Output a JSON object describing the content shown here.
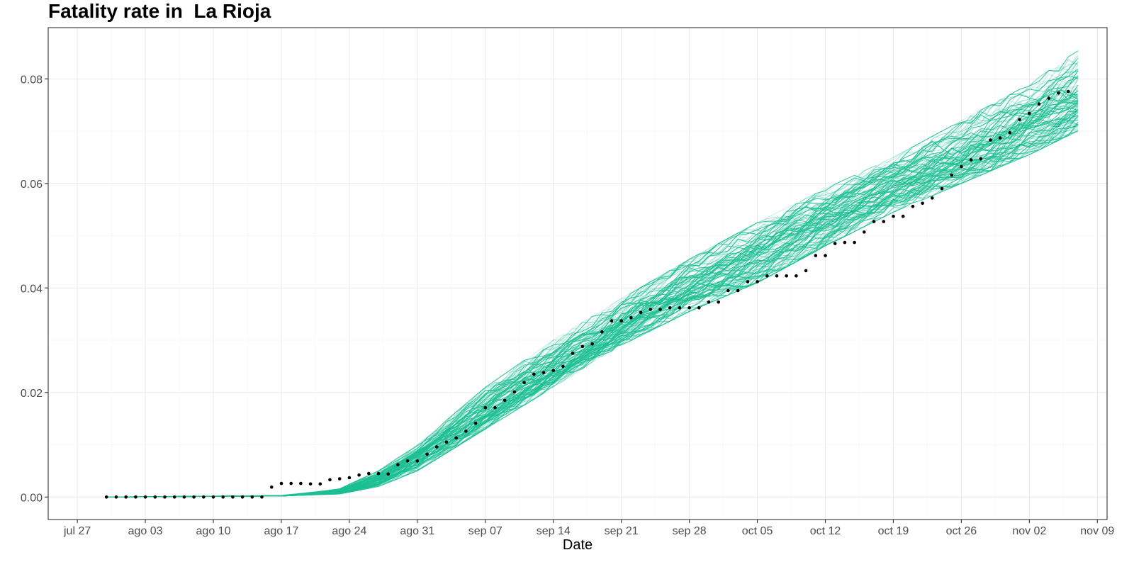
{
  "chart_data": {
    "type": "line",
    "title": "Fatality rate in  La Rioja",
    "xlabel": "Date",
    "ylabel": "",
    "x_axis": {
      "kind": "date",
      "range": [
        "2020-07-24",
        "2020-11-10"
      ],
      "tick_dates": [
        "2020-07-27",
        "2020-08-03",
        "2020-08-10",
        "2020-08-17",
        "2020-08-24",
        "2020-08-31",
        "2020-09-07",
        "2020-09-14",
        "2020-09-21",
        "2020-09-28",
        "2020-10-05",
        "2020-10-12",
        "2020-10-19",
        "2020-10-26",
        "2020-11-02",
        "2020-11-09"
      ],
      "tick_labels": [
        "jul 27",
        "ago 03",
        "ago 10",
        "ago 17",
        "ago 24",
        "ago 31",
        "sep 07",
        "sep 14",
        "sep 21",
        "sep 28",
        "oct 05",
        "oct 12",
        "oct 19",
        "oct 26",
        "nov 02",
        "nov 09"
      ]
    },
    "y_axis": {
      "range": [
        -0.0043,
        0.0898
      ],
      "ticks": [
        0.0,
        0.02,
        0.04,
        0.06,
        0.08
      ],
      "tick_labels": [
        "0.00",
        "0.02",
        "0.04",
        "0.06",
        "0.08"
      ]
    },
    "grid": true,
    "legend": "none",
    "colors": {
      "simulation": "#1dbf94",
      "observed": "#000000",
      "grid_major": "#ebebeb",
      "grid_minor": "#f5f5f5",
      "panel_border": "#333333"
    },
    "series": [
      {
        "kind": "points",
        "start_date": "2020-07-30",
        "values": [
          0,
          0,
          0,
          0,
          0,
          0,
          0,
          0,
          0,
          0,
          0,
          0,
          0,
          0,
          0,
          0,
          0,
          0.0019,
          0.0026,
          0.0026,
          0.0026,
          0.0025,
          0.0025,
          0.0033,
          0.0035,
          0.0037,
          0.0042,
          0.0045,
          0.0045,
          0.0044,
          0.0062,
          0.0069,
          0.0069,
          0.0082,
          0.0096,
          0.0105,
          0.0113,
          0.0126,
          0.0141,
          0.0171,
          0.0171,
          0.0185,
          0.0201,
          0.0219,
          0.0235,
          0.0238,
          0.0242,
          0.025,
          0.0275,
          0.0288,
          0.0293,
          0.0316,
          0.0337,
          0.0337,
          0.0343,
          0.0353,
          0.0359,
          0.0359,
          0.0362,
          0.0362,
          0.0362,
          0.0362,
          0.0373,
          0.0373,
          0.0395,
          0.0395,
          0.0412,
          0.0412,
          0.0423,
          0.0423,
          0.0423,
          0.0423,
          0.0433,
          0.0462,
          0.0462,
          0.0485,
          0.0487,
          0.0487,
          0.0507,
          0.0527,
          0.0527,
          0.0537,
          0.0537,
          0.0556,
          0.0562,
          0.0572,
          0.059,
          0.0616,
          0.0632,
          0.0645,
          0.0647,
          0.0683,
          0.0687,
          0.0697,
          0.0722,
          0.0734,
          0.0752,
          0.0763,
          0.0773,
          0.0776
        ]
      },
      {
        "kind": "simulation-envelope",
        "count": 100,
        "start_date": "2020-07-30",
        "end_date": "2020-11-07",
        "knots": [
          {
            "date": "2020-07-30",
            "low": 0.0,
            "mid": 0.0,
            "high": 0.0
          },
          {
            "date": "2020-08-17",
            "low": 0.0002,
            "mid": 0.0002,
            "high": 0.0003
          },
          {
            "date": "2020-08-23",
            "low": 0.0006,
            "mid": 0.001,
            "high": 0.0016
          },
          {
            "date": "2020-08-27",
            "low": 0.002,
            "mid": 0.0035,
            "high": 0.005
          },
          {
            "date": "2020-08-31",
            "low": 0.005,
            "mid": 0.008,
            "high": 0.01
          },
          {
            "date": "2020-09-07",
            "low": 0.013,
            "mid": 0.0165,
            "high": 0.021
          },
          {
            "date": "2020-09-14",
            "low": 0.021,
            "mid": 0.025,
            "high": 0.03
          },
          {
            "date": "2020-09-21",
            "low": 0.029,
            "mid": 0.033,
            "high": 0.038
          },
          {
            "date": "2020-09-28",
            "low": 0.0355,
            "mid": 0.0405,
            "high": 0.0455
          },
          {
            "date": "2020-10-05",
            "low": 0.041,
            "mid": 0.0465,
            "high": 0.0525
          },
          {
            "date": "2020-10-12",
            "low": 0.048,
            "mid": 0.0535,
            "high": 0.059
          },
          {
            "date": "2020-10-19",
            "low": 0.0545,
            "mid": 0.06,
            "high": 0.065
          },
          {
            "date": "2020-10-26",
            "low": 0.06,
            "mid": 0.065,
            "high": 0.072
          },
          {
            "date": "2020-11-02",
            "low": 0.0655,
            "mid": 0.072,
            "high": 0.079
          },
          {
            "date": "2020-11-07",
            "low": 0.07,
            "mid": 0.0765,
            "high": 0.0855
          }
        ]
      }
    ]
  }
}
